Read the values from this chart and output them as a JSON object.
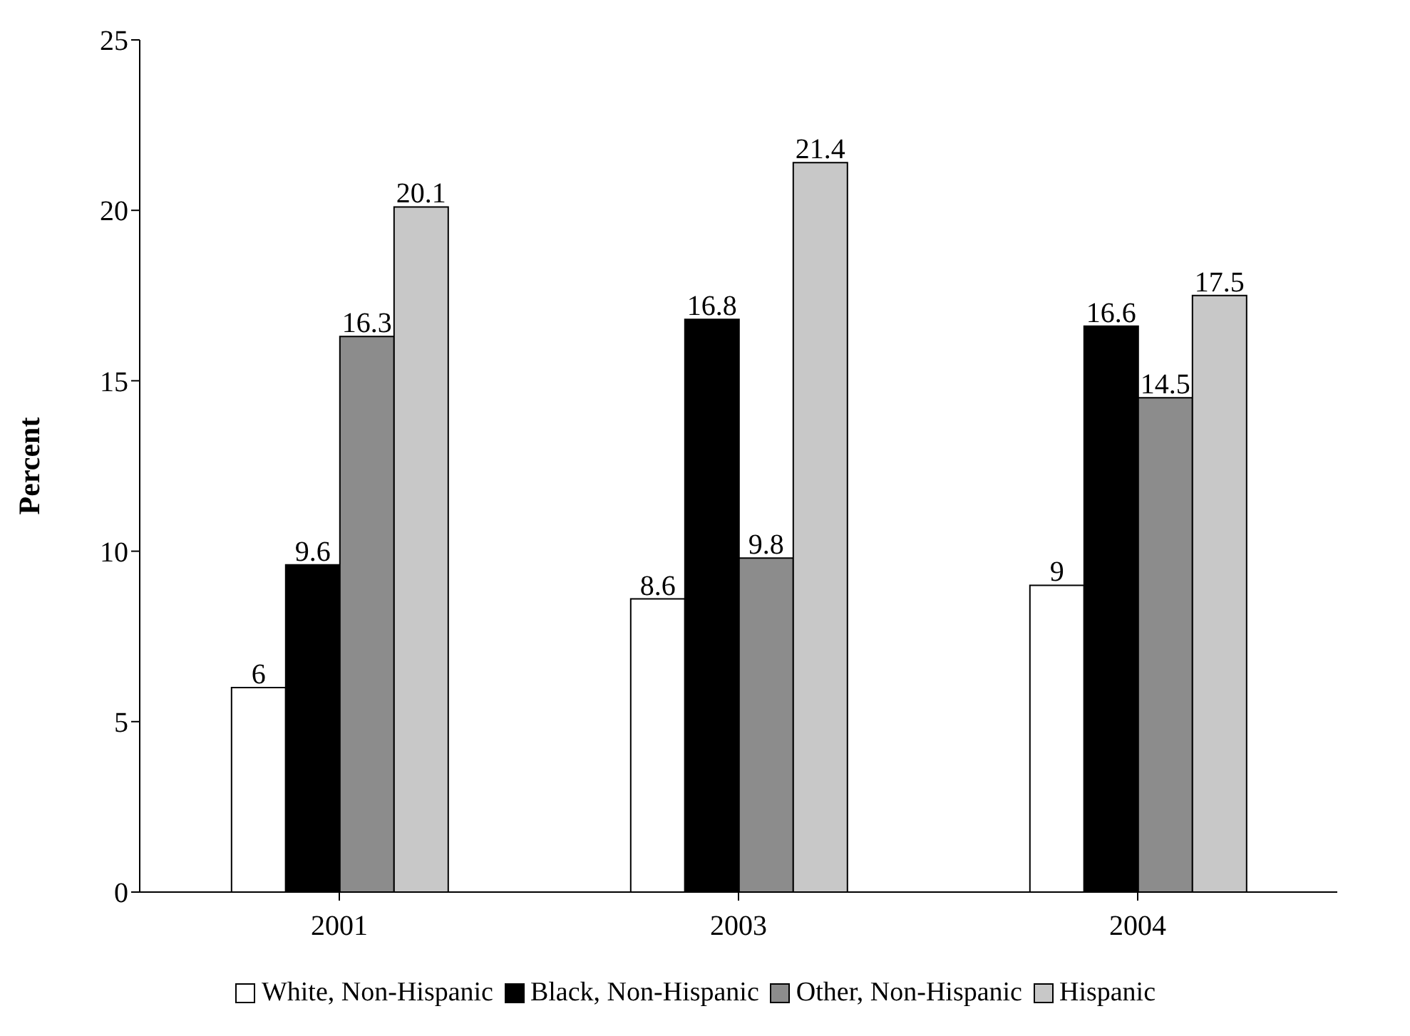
{
  "chart_data": {
    "type": "bar",
    "ylabel": "Percent",
    "categories": [
      "2001",
      "2003",
      "2004"
    ],
    "series": [
      {
        "name": "White, Non-Hispanic",
        "color": "#ffffff",
        "values": [
          6,
          8.6,
          9
        ]
      },
      {
        "name": "Black, Non-Hispanic",
        "color": "#000000",
        "values": [
          9.6,
          16.8,
          16.6
        ]
      },
      {
        "name": "Other, Non-Hispanic",
        "color": "#8c8c8c",
        "values": [
          16.3,
          9.8,
          14.5
        ]
      },
      {
        "name": "Hispanic",
        "color": "#c8c8c8",
        "values": [
          20.1,
          21.4,
          17.5
        ]
      }
    ],
    "ylim": [
      0,
      25
    ],
    "yticks": [
      0,
      5,
      10,
      15,
      20,
      25
    ],
    "grid": false,
    "legend": "bottom",
    "data_labels": true
  }
}
